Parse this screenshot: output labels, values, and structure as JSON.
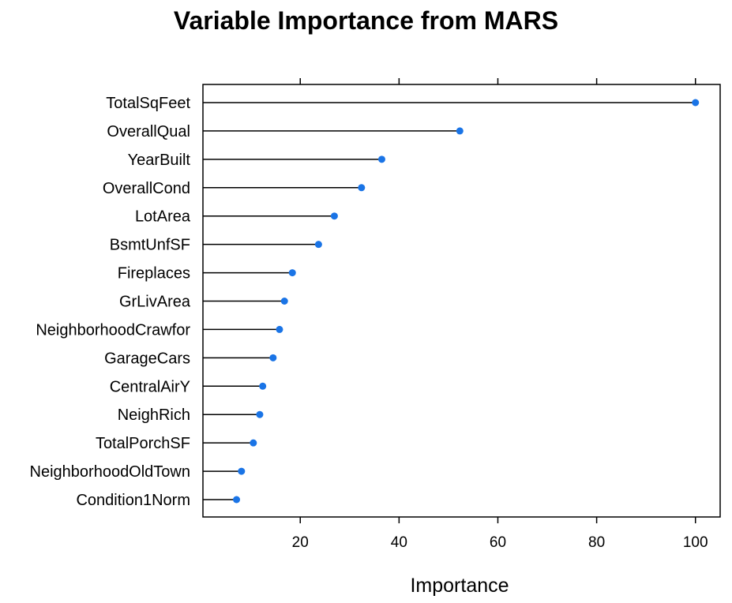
{
  "chart_data": {
    "type": "dot",
    "title": "Variable Importance from MARS",
    "xlabel": "Importance",
    "ylabel": "",
    "xlim": [
      0.3,
      105
    ],
    "xticks": [
      20,
      40,
      60,
      80,
      100
    ],
    "grid": false,
    "legend": "none",
    "colors": {
      "point": "#1a74e6",
      "line": "#000000"
    },
    "categories": [
      "TotalSqFeet",
      "OverallQual",
      "YearBuilt",
      "OverallCond",
      "LotArea",
      "BsmtUnfSF",
      "Fireplaces",
      "GrLivArea",
      "NeighborhoodCrawfor",
      "GarageCars",
      "CentralAirY",
      "NeighRich",
      "TotalPorchSF",
      "NeighborhoodOldTown",
      "Condition1Norm"
    ],
    "values": [
      100,
      52.3,
      36.5,
      32.4,
      26.9,
      23.7,
      18.4,
      16.8,
      15.8,
      14.5,
      12.4,
      11.8,
      10.5,
      8.1,
      7.1
    ]
  }
}
